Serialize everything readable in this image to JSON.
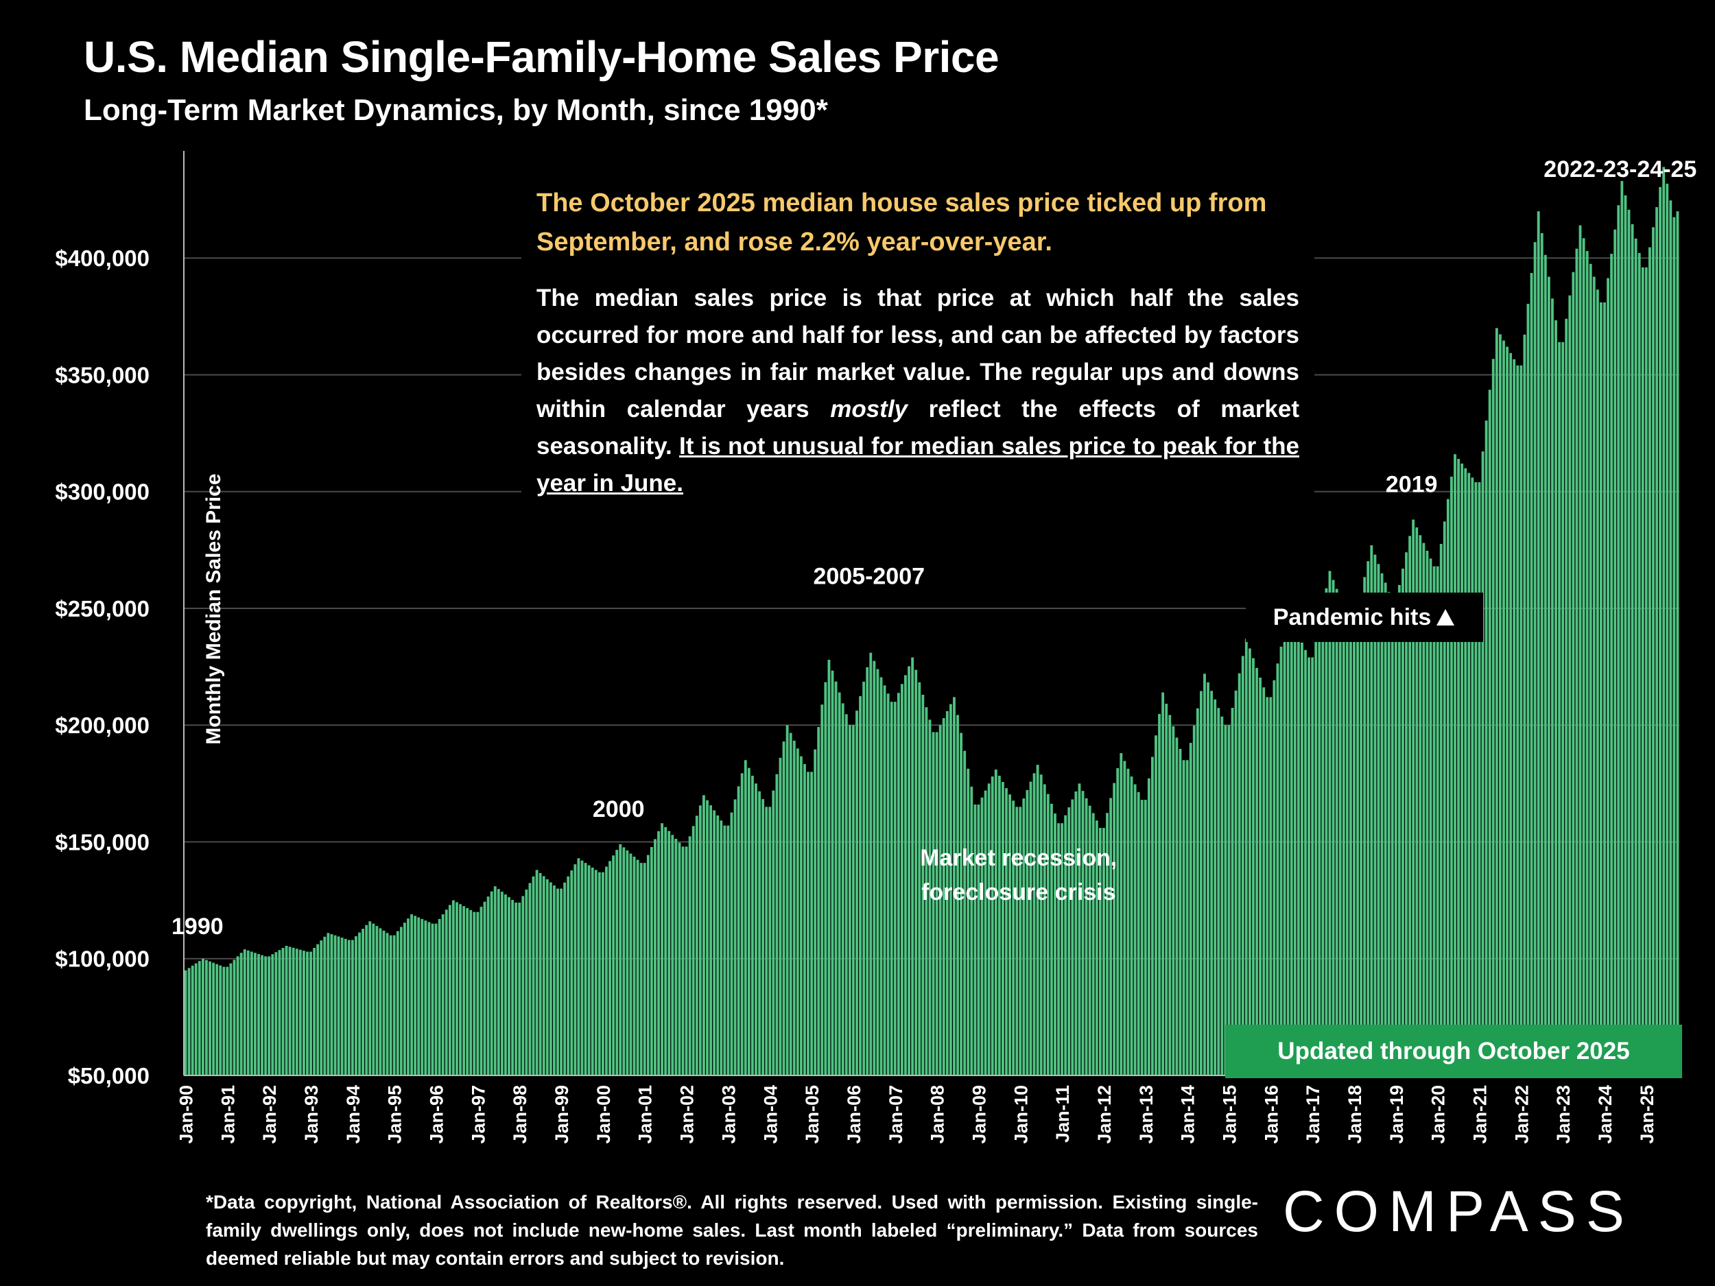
{
  "title": "U.S. Median Single-Family-Home Sales Price",
  "subtitle": "Long-Term Market Dynamics, by Month, since 1990*",
  "note": {
    "headline": "The October  2025 median house sales price ticked up from September, and rose 2.2% year-over-year.",
    "body_main": "The median sales price is that price at which half the sales occurred for more and half for less, and can be affected by factors besides changes in fair market value. The regular ups and downs within calendar years",
    "body_emphasis": "mostly",
    "body_after": "reflect the effects of market seasonality.",
    "body_underlined": "It is not unusual for median sales price to peak for the year in June."
  },
  "pandemic_label": "Pandemic hits",
  "pandemic_icon": "up-triangle-icon",
  "updated_label": "Updated through October 2025",
  "footnote": "*Data copyright, National Association of Realtors®. All rights reserved. Used with permission. Existing single-family dwellings only, does  not include new-home sales. Last month labeled “preliminary.” Data from sources deemed reliable but may contain errors and subject to revision.",
  "logo_text": "COMPASS",
  "colors": {
    "bar": "#4fc382",
    "background": "#000000",
    "headline": "#f7c96b",
    "badge": "#1f9e52"
  },
  "chart_data": {
    "type": "bar",
    "ylabel": "Monthly Median Sales Price",
    "ylim": [
      50000,
      440000
    ],
    "yticks": [
      {
        "value": 50000,
        "label": "$50,000"
      },
      {
        "value": 100000,
        "label": "$100,000"
      },
      {
        "value": 150000,
        "label": "$150,000"
      },
      {
        "value": 200000,
        "label": "$200,000"
      },
      {
        "value": 250000,
        "label": "$250,000"
      },
      {
        "value": 300000,
        "label": "$300,000"
      },
      {
        "value": 350000,
        "label": "$350,000"
      },
      {
        "value": 400000,
        "label": "$400,000"
      }
    ],
    "xtick_labels": [
      "Jan-90",
      "Jan-91",
      "Jan-92",
      "Jan-93",
      "Jan-94",
      "Jan-95",
      "Jan-96",
      "Jan-97",
      "Jan-98",
      "Jan-99",
      "Jan-00",
      "Jan-01",
      "Jan-02",
      "Jan-03",
      "Jan-04",
      "Jan-05",
      "Jan-06",
      "Jan-07",
      "Jan-08",
      "Jan-09",
      "Jan-10",
      "Jan-11",
      "Jan-12",
      "Jan-13",
      "Jan-14",
      "Jan-15",
      "Jan-16",
      "Jan-17",
      "Jan-18",
      "Jan-19",
      "Jan-20",
      "Jan-21",
      "Jan-22",
      "Jan-23",
      "Jan-24",
      "Jan-25"
    ],
    "grid": "horizontal",
    "last_month": "Oct-25",
    "jan_values": [
      95000,
      96500,
      101000,
      103000,
      108000,
      110000,
      115000,
      120000,
      124000,
      130000,
      137000,
      141000,
      148000,
      157000,
      165000,
      180000,
      200000,
      210000,
      197000,
      166000,
      165000,
      158000,
      156000,
      168000,
      185000,
      200000,
      212000,
      229000,
      243000,
      253000,
      268000,
      304000,
      354000,
      364000,
      381000,
      396000
    ],
    "jun_values": [
      100000,
      104000,
      105500,
      111000,
      116000,
      119000,
      125000,
      131000,
      138000,
      143000,
      149000,
      158000,
      170000,
      185000,
      200000,
      228000,
      231000,
      229000,
      212000,
      181000,
      183000,
      175000,
      188000,
      214000,
      222000,
      237000,
      248000,
      266000,
      277000,
      288000,
      316000,
      370000,
      420000,
      414000,
      433000,
      439000
    ],
    "oct_2025_value": 420000,
    "annotations": [
      {
        "text": "1990",
        "x": "Jan-90"
      },
      {
        "text": "2000",
        "x": "Jun-00"
      },
      {
        "text": "2005-2007",
        "x": "Jun-06"
      },
      {
        "text": "Market recession,",
        "x": "Jan-10"
      },
      {
        "text": "foreclosure crisis",
        "x": "Jan-10"
      },
      {
        "text": "2019",
        "x": "Jun-19"
      },
      {
        "text": "2022-23-24-25",
        "x": "Jun-24"
      }
    ]
  }
}
